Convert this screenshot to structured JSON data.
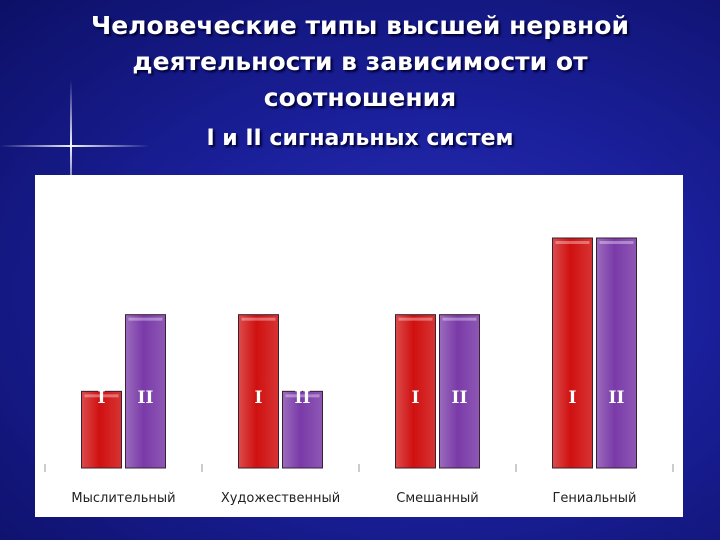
{
  "header": {
    "title_lines": [
      "Человеческие типы высшей нервной",
      "деятельности в зависимости от",
      "соотношения"
    ],
    "subtitle": "I и II сигнальных систем"
  },
  "colors": {
    "series_I": "#d01010",
    "series_II": "#7a3aa8",
    "background": "#1a1f9a"
  },
  "chart_data": {
    "type": "bar",
    "title": "",
    "xlabel": "",
    "ylabel": "",
    "categories": [
      "Мыслительный",
      "Художественный",
      "Смешанный",
      "Гениальный"
    ],
    "series": [
      {
        "name": "I",
        "values": [
          1,
          2,
          2,
          3
        ]
      },
      {
        "name": "II",
        "values": [
          2,
          1,
          2,
          3
        ]
      }
    ],
    "bar_labels": [
      "I",
      "II"
    ],
    "ylim": [
      0,
      3.3
    ],
    "grid": false,
    "legend": "none"
  }
}
